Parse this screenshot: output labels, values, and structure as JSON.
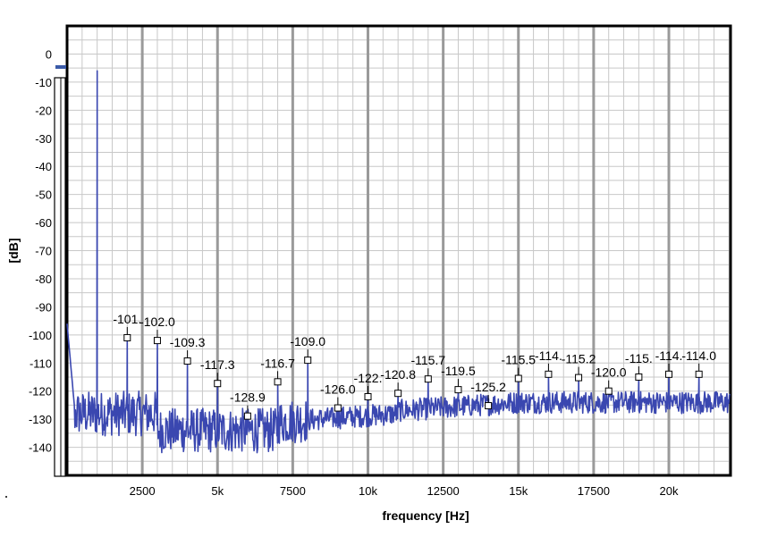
{
  "chart_data": {
    "type": "line",
    "xlabel": "frequency [Hz]",
    "ylabel": "[dB]",
    "xlim": [
      0,
      22050
    ],
    "ylim": [
      -150,
      10
    ],
    "grid": true,
    "x_tick_labels": [
      {
        "value": 2500,
        "label": "2500"
      },
      {
        "value": 5000,
        "label": "5k"
      },
      {
        "value": 7500,
        "label": "7500"
      },
      {
        "value": 10000,
        "label": "10k"
      },
      {
        "value": 12500,
        "label": "12500"
      },
      {
        "value": 15000,
        "label": "15k"
      },
      {
        "value": 17500,
        "label": "17500"
      },
      {
        "value": 20000,
        "label": "20k"
      }
    ],
    "y_tick_labels": [
      {
        "value": 0,
        "label": "0"
      },
      {
        "value": -10,
        "label": "-10"
      },
      {
        "value": -20,
        "label": "-20"
      },
      {
        "value": -30,
        "label": "-30"
      },
      {
        "value": -40,
        "label": "-40"
      },
      {
        "value": -50,
        "label": "-50"
      },
      {
        "value": -60,
        "label": "-60"
      },
      {
        "value": -70,
        "label": "-70"
      },
      {
        "value": -80,
        "label": "-80"
      },
      {
        "value": -90,
        "label": "-90"
      },
      {
        "value": -100,
        "label": "-100"
      },
      {
        "value": -110,
        "label": "-110"
      },
      {
        "value": -120,
        "label": "-120"
      },
      {
        "value": -130,
        "label": "-130"
      },
      {
        "value": -140,
        "label": "-140"
      }
    ],
    "series_color": "#3a47b0",
    "fundamental": {
      "x": 1000,
      "y": -6
    },
    "harmonics": [
      {
        "x": 2000,
        "y": -101,
        "label": "-101."
      },
      {
        "x": 3000,
        "y": -102.0,
        "label": "-102.0"
      },
      {
        "x": 4000,
        "y": -109.3,
        "label": "-109.3"
      },
      {
        "x": 5000,
        "y": -117.3,
        "label": "-117.3"
      },
      {
        "x": 6000,
        "y": -128.9,
        "label": "-128.9"
      },
      {
        "x": 7000,
        "y": -116.7,
        "label": "-116.7"
      },
      {
        "x": 8000,
        "y": -109.0,
        "label": "-109.0"
      },
      {
        "x": 9000,
        "y": -126.0,
        "label": "-126.0"
      },
      {
        "x": 10000,
        "y": -122,
        "label": "-122."
      },
      {
        "x": 11000,
        "y": -120.8,
        "label": "-120.8"
      },
      {
        "x": 12000,
        "y": -115.7,
        "label": "-115.7"
      },
      {
        "x": 13000,
        "y": -119.5,
        "label": "-119.5"
      },
      {
        "x": 14000,
        "y": -125.2,
        "label": "-125.2"
      },
      {
        "x": 15000,
        "y": -115.5,
        "label": "-115.5"
      },
      {
        "x": 16000,
        "y": -114,
        "label": "-114."
      },
      {
        "x": 17000,
        "y": -115.2,
        "label": "-115.2"
      },
      {
        "x": 18000,
        "y": -120.0,
        "label": "-120.0"
      },
      {
        "x": 19000,
        "y": -115,
        "label": "-115."
      },
      {
        "x": 20000,
        "y": -114,
        "label": "-114."
      },
      {
        "x": 21000,
        "y": -114.0,
        "label": "-114.0"
      }
    ]
  }
}
